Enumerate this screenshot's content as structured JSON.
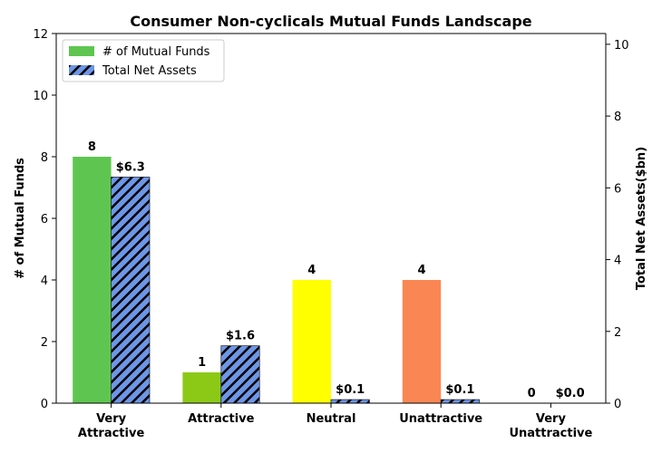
{
  "chart_data": {
    "type": "bar",
    "title": "Consumer Non-cyclicals Mutual Funds Landscape",
    "categories": [
      [
        "Very",
        "Attractive"
      ],
      [
        "Attractive"
      ],
      [
        "Neutral"
      ],
      [
        "Unattractive"
      ],
      [
        "Very",
        "Unattractive"
      ]
    ],
    "ylabel_left": "# of Mutual Funds",
    "ylabel_right": "Total Net Assets($bn)",
    "ylim_left": [
      0,
      12
    ],
    "yticks_left": [
      0,
      2,
      4,
      6,
      8,
      10,
      12
    ],
    "ylim_right": [
      0,
      10.3
    ],
    "yticks_right": [
      0,
      2,
      4,
      6,
      8,
      10
    ],
    "series": [
      {
        "name": "# of Mutual Funds",
        "axis": "left",
        "values": [
          8,
          1,
          4,
          4,
          0
        ],
        "labels": [
          "8",
          "1",
          "4",
          "4",
          "0"
        ],
        "colors": [
          "#5ec650",
          "#8cc917",
          "#ffff00",
          "#fa8753",
          "#e03030"
        ]
      },
      {
        "name": "Total Net Assets",
        "axis": "right",
        "values": [
          6.3,
          1.6,
          0.1,
          0.1,
          0.0
        ],
        "labels": [
          "$6.3",
          "$1.6",
          "$0.1",
          "$0.1",
          "$0.0"
        ],
        "color": "#6d96e6",
        "hatch": "diagonal"
      }
    ],
    "legend": {
      "position": "top-left"
    },
    "grid": false
  }
}
